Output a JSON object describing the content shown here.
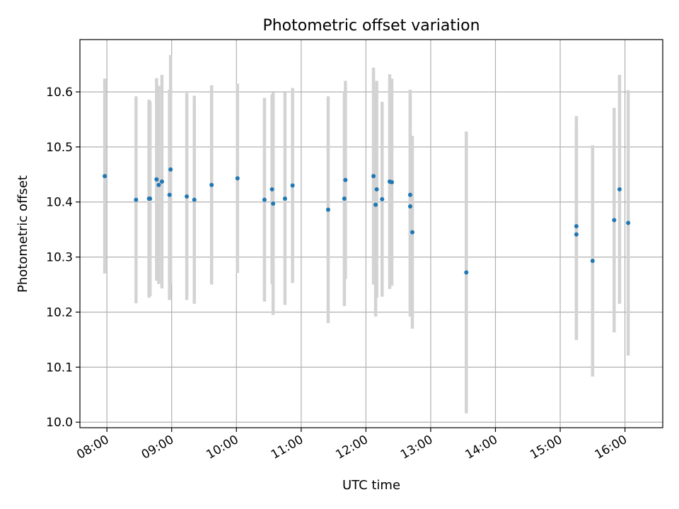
{
  "chart_data": {
    "type": "scatter",
    "title": "Photometric offset variation",
    "xlabel": "UTC time",
    "ylabel": "Photometric offset",
    "grid": true,
    "xlim": [
      "07:35",
      "16:35"
    ],
    "ylim": [
      9.99,
      10.695
    ],
    "xticks": [
      "08:00",
      "09:00",
      "10:00",
      "11:00",
      "12:00",
      "13:00",
      "14:00",
      "15:00",
      "16:00"
    ],
    "yticks": [
      10.0,
      10.1,
      10.2,
      10.3,
      10.4,
      10.5,
      10.6
    ],
    "marker_color": "#1f77b4",
    "errorbar_color": "#d3d3d3",
    "points": [
      {
        "x": "07:58",
        "y": 10.447,
        "yerr": [
          0.177,
          0.177
        ]
      },
      {
        "x": "08:27",
        "y": 10.404,
        "yerr": [
          0.188,
          0.188
        ]
      },
      {
        "x": "08:39",
        "y": 10.406,
        "yerr": [
          0.18,
          0.18
        ]
      },
      {
        "x": "08:40",
        "y": 10.406,
        "yerr": [
          0.177,
          0.177
        ]
      },
      {
        "x": "08:46",
        "y": 10.441,
        "yerr": [
          0.184,
          0.184
        ]
      },
      {
        "x": "08:48",
        "y": 10.431,
        "yerr": [
          0.18,
          0.18
        ]
      },
      {
        "x": "08:51",
        "y": 10.437,
        "yerr": [
          0.194,
          0.194
        ]
      },
      {
        "x": "08:58",
        "y": 10.413,
        "yerr": [
          0.191,
          0.191
        ]
      },
      {
        "x": "08:59",
        "y": 10.459,
        "yerr": [
          0.208,
          0.208
        ]
      },
      {
        "x": "09:14",
        "y": 10.41,
        "yerr": [
          0.188,
          0.188
        ]
      },
      {
        "x": "09:21",
        "y": 10.404,
        "yerr": [
          0.189,
          0.189
        ]
      },
      {
        "x": "09:37",
        "y": 10.431,
        "yerr": [
          0.181,
          0.181
        ]
      },
      {
        "x": "10:01",
        "y": 10.443,
        "yerr": [
          0.172,
          0.172
        ]
      },
      {
        "x": "10:26",
        "y": 10.404,
        "yerr": [
          0.185,
          0.185
        ]
      },
      {
        "x": "10:33",
        "y": 10.423,
        "yerr": [
          0.172,
          0.172
        ]
      },
      {
        "x": "10:34",
        "y": 10.397,
        "yerr": [
          0.202,
          0.202
        ]
      },
      {
        "x": "10:45",
        "y": 10.406,
        "yerr": [
          0.193,
          0.193
        ]
      },
      {
        "x": "10:52",
        "y": 10.43,
        "yerr": [
          0.177,
          0.177
        ]
      },
      {
        "x": "11:25",
        "y": 10.386,
        "yerr": [
          0.206,
          0.206
        ]
      },
      {
        "x": "11:40",
        "y": 10.406,
        "yerr": [
          0.195,
          0.195
        ]
      },
      {
        "x": "11:41",
        "y": 10.44,
        "yerr": [
          0.18,
          0.18
        ]
      },
      {
        "x": "12:07",
        "y": 10.447,
        "yerr": [
          0.197,
          0.197
        ]
      },
      {
        "x": "12:09",
        "y": 10.395,
        "yerr": [
          0.203,
          0.203
        ]
      },
      {
        "x": "12:10",
        "y": 10.423,
        "yerr": [
          0.197,
          0.197
        ]
      },
      {
        "x": "12:15",
        "y": 10.405,
        "yerr": [
          0.177,
          0.177
        ]
      },
      {
        "x": "12:22",
        "y": 10.437,
        "yerr": [
          0.195,
          0.195
        ]
      },
      {
        "x": "12:24",
        "y": 10.436,
        "yerr": [
          0.188,
          0.188
        ]
      },
      {
        "x": "12:41",
        "y": 10.413,
        "yerr": [
          0.191,
          0.191
        ]
      },
      {
        "x": "12:41",
        "y": 10.392,
        "yerr": [
          0.2,
          0.2
        ]
      },
      {
        "x": "12:43",
        "y": 10.345,
        "yerr": [
          0.175,
          0.175
        ]
      },
      {
        "x": "13:33",
        "y": 10.272,
        "yerr": [
          0.256,
          0.256
        ]
      },
      {
        "x": "15:15",
        "y": 10.356,
        "yerr": [
          0.2,
          0.2
        ]
      },
      {
        "x": "15:15",
        "y": 10.341,
        "yerr": [
          0.192,
          0.192
        ]
      },
      {
        "x": "15:30",
        "y": 10.293,
        "yerr": [
          0.21,
          0.21
        ]
      },
      {
        "x": "15:50",
        "y": 10.367,
        "yerr": [
          0.204,
          0.204
        ]
      },
      {
        "x": "15:55",
        "y": 10.423,
        "yerr": [
          0.208,
          0.208
        ]
      },
      {
        "x": "16:03",
        "y": 10.362,
        "yerr": [
          0.241,
          0.241
        ]
      }
    ]
  }
}
